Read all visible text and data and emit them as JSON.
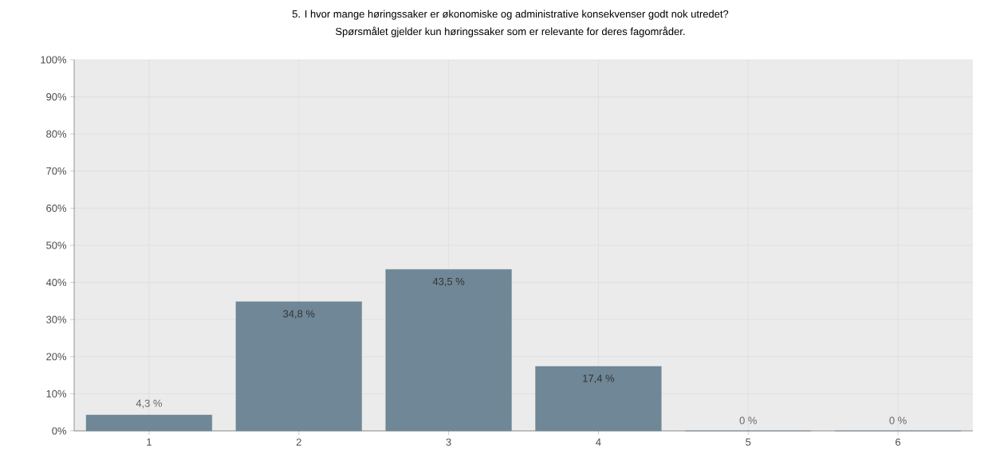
{
  "chart_data": {
    "type": "bar",
    "title": "5. I hvor mange høringssaker er økonomiske og administrative konsekvenser godt nok utredet?",
    "subtitle": "Spørsmålet gjelder kun høringssaker som er relevante for deres fagområder.",
    "categories": [
      "1",
      "2",
      "3",
      "4",
      "5",
      "6"
    ],
    "values": [
      4.3,
      34.8,
      43.5,
      17.4,
      0,
      0
    ],
    "value_labels": [
      "4,3 %",
      "34,8 %",
      "43,5 %",
      "17,4 %",
      "0 %",
      "0 %"
    ],
    "color": "#6f8796",
    "ylim": [
      0,
      100
    ],
    "yticks": [
      {
        "value": 0,
        "label": "0%"
      },
      {
        "value": 10,
        "label": "10%"
      },
      {
        "value": 20,
        "label": "20%"
      },
      {
        "value": 30,
        "label": "30%"
      },
      {
        "value": 40,
        "label": "40%"
      },
      {
        "value": 50,
        "label": "50%"
      },
      {
        "value": 60,
        "label": "60%"
      },
      {
        "value": 70,
        "label": "70%"
      },
      {
        "value": 80,
        "label": "80%"
      },
      {
        "value": 90,
        "label": "90%"
      },
      {
        "value": 100,
        "label": "100%"
      }
    ],
    "grid": true
  }
}
